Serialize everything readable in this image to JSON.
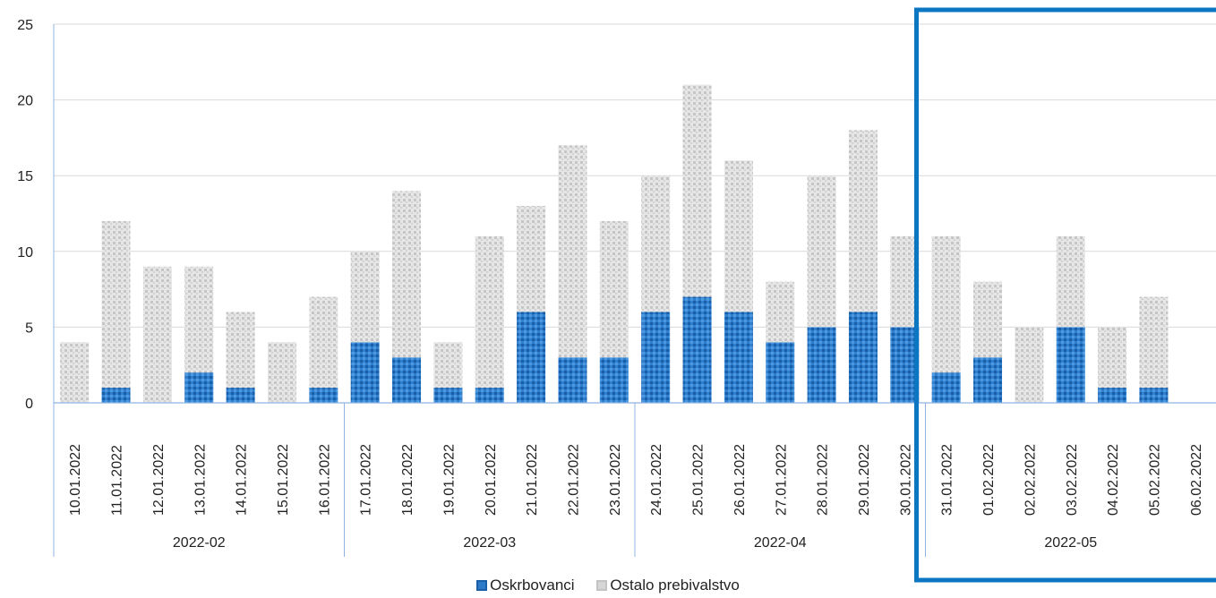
{
  "chart_data": {
    "type": "bar",
    "stacked": true,
    "categories": [
      "10.01.2022",
      "11.01.2022",
      "12.01.2022",
      "13.01.2022",
      "14.01.2022",
      "15.01.2022",
      "16.01.2022",
      "17.01.2022",
      "18.01.2022",
      "19.01.2022",
      "20.01.2022",
      "21.01.2022",
      "22.01.2022",
      "23.01.2022",
      "24.01.2022",
      "25.01.2022",
      "26.01.2022",
      "27.01.2022",
      "28.01.2022",
      "29.01.2022",
      "30.01.2022",
      "31.01.2022",
      "01.02.2022",
      "02.02.2022",
      "03.02.2022",
      "04.02.2022",
      "05.02.2022",
      "06.02.2022"
    ],
    "groups": [
      {
        "label": "2022-02",
        "count": 7
      },
      {
        "label": "2022-03",
        "count": 7
      },
      {
        "label": "2022-04",
        "count": 7
      },
      {
        "label": "2022-05",
        "count": 7
      }
    ],
    "series": [
      {
        "name": "Oskrbovanci",
        "color": "#2e7bc9",
        "values": [
          0,
          1,
          0,
          2,
          1,
          0,
          1,
          4,
          3,
          1,
          1,
          6,
          3,
          3,
          6,
          7,
          6,
          4,
          5,
          6,
          5,
          2,
          3,
          0,
          5,
          1,
          1,
          0
        ]
      },
      {
        "name": "Ostalo prebivalstvo",
        "color": "#d9d9d9",
        "values": [
          4,
          11,
          9,
          7,
          5,
          4,
          6,
          6,
          11,
          3,
          10,
          7,
          14,
          9,
          9,
          14,
          10,
          4,
          10,
          12,
          6,
          9,
          5,
          5,
          6,
          4,
          6,
          0
        ]
      }
    ],
    "ylim": [
      0,
      25
    ],
    "yticks": [
      0,
      5,
      10,
      15,
      20,
      25
    ],
    "grid": true,
    "legend": "bottom",
    "highlight_group": "2022-05",
    "highlight_color": "#0b77c2"
  }
}
